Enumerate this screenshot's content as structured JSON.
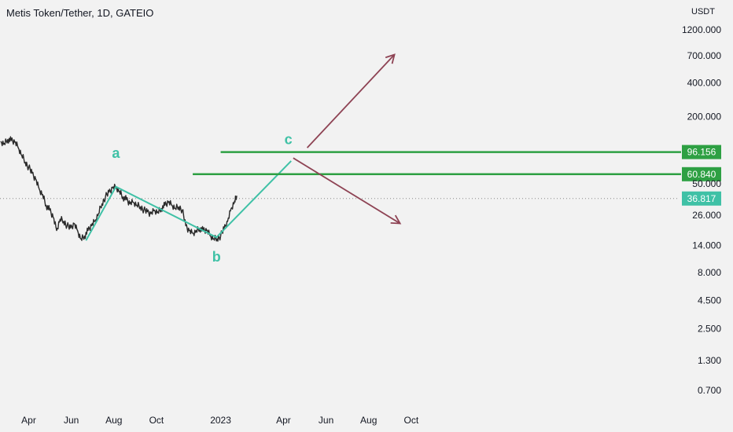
{
  "header": {
    "title": "Metis Token/Tether, 1D, GATEIO",
    "unit": "USDT"
  },
  "colors": {
    "background": "#f2f2f2",
    "price_line": "#2a2a2a",
    "wave": "#3fc1a6",
    "level": "#2ea043",
    "arrow": "#8e4354",
    "last_price_badge": "#3fc1a6"
  },
  "chart_data": {
    "type": "line",
    "title": "Metis Token/Tether, 1D, GATEIO",
    "ylabel": "USDT",
    "y_scale": "log",
    "yticks": [
      "1200.000",
      "700.000",
      "400.000",
      "200.000",
      "50.000",
      "26.000",
      "14.000",
      "8.000",
      "4.500",
      "2.500",
      "1.300",
      "0.700"
    ],
    "ytick_values": [
      1200,
      700,
      400,
      200,
      50,
      26,
      14,
      8,
      4.5,
      2.5,
      1.3,
      0.7
    ],
    "xticks": [
      "Apr",
      "Jun",
      "Aug",
      "Oct",
      "2023",
      "Apr",
      "Jun",
      "Aug",
      "Oct"
    ],
    "series": [
      {
        "name": "",
        "values": [
          [
            "2022-02-20",
            120
          ],
          [
            "2022-02-25",
            115
          ],
          [
            "2022-03-02",
            125
          ],
          [
            "2022-03-07",
            122
          ],
          [
            "2022-03-12",
            118
          ],
          [
            "2022-03-17",
            105
          ],
          [
            "2022-03-22",
            90
          ],
          [
            "2022-03-27",
            78
          ],
          [
            "2022-04-01",
            70
          ],
          [
            "2022-04-06",
            62
          ],
          [
            "2022-04-11",
            55
          ],
          [
            "2022-04-16",
            45
          ],
          [
            "2022-04-21",
            40
          ],
          [
            "2022-04-26",
            32
          ],
          [
            "2022-05-01",
            29
          ],
          [
            "2022-05-06",
            25
          ],
          [
            "2022-05-11",
            19
          ],
          [
            "2022-05-16",
            24
          ],
          [
            "2022-05-21",
            23
          ],
          [
            "2022-05-26",
            21
          ],
          [
            "2022-05-31",
            20
          ],
          [
            "2022-06-05",
            22
          ],
          [
            "2022-06-10",
            19
          ],
          [
            "2022-06-15",
            16
          ],
          [
            "2022-06-20",
            17
          ],
          [
            "2022-06-25",
            19
          ],
          [
            "2022-06-30",
            21
          ],
          [
            "2022-07-05",
            23
          ],
          [
            "2022-07-10",
            27
          ],
          [
            "2022-07-15",
            33
          ],
          [
            "2022-07-20",
            38
          ],
          [
            "2022-07-25",
            42
          ],
          [
            "2022-07-30",
            46
          ],
          [
            "2022-08-04",
            47
          ],
          [
            "2022-08-09",
            43
          ],
          [
            "2022-08-14",
            38
          ],
          [
            "2022-08-19",
            36
          ],
          [
            "2022-08-24",
            33
          ],
          [
            "2022-08-29",
            34
          ],
          [
            "2022-09-03",
            32
          ],
          [
            "2022-09-08",
            31
          ],
          [
            "2022-09-13",
            29
          ],
          [
            "2022-09-18",
            28
          ],
          [
            "2022-09-23",
            27
          ],
          [
            "2022-09-28",
            29
          ],
          [
            "2022-10-03",
            28
          ],
          [
            "2022-10-08",
            30
          ],
          [
            "2022-10-13",
            32
          ],
          [
            "2022-10-18",
            34
          ],
          [
            "2022-10-23",
            32
          ],
          [
            "2022-10-28",
            30
          ],
          [
            "2022-11-02",
            31
          ],
          [
            "2022-11-07",
            29
          ],
          [
            "2022-11-12",
            21
          ],
          [
            "2022-11-17",
            19
          ],
          [
            "2022-11-22",
            18
          ],
          [
            "2022-11-27",
            19
          ],
          [
            "2022-12-02",
            20
          ],
          [
            "2022-12-07",
            19
          ],
          [
            "2022-12-12",
            19
          ],
          [
            "2022-12-17",
            17
          ],
          [
            "2022-12-22",
            16
          ],
          [
            "2022-12-27",
            16
          ],
          [
            "2023-01-01",
            17
          ],
          [
            "2023-01-06",
            20
          ],
          [
            "2023-01-11",
            23
          ],
          [
            "2023-01-16",
            30
          ],
          [
            "2023-01-21",
            35
          ],
          [
            "2023-01-24",
            39
          ]
        ]
      }
    ],
    "annotations": [
      {
        "label": "a",
        "date": "2022-08-04",
        "value": 85
      },
      {
        "label": "b",
        "date": "2022-12-26",
        "value": 10
      },
      {
        "label": "c",
        "date": "2023-04-08",
        "value": 113
      }
    ],
    "wave_path": [
      [
        "2022-06-22",
        15.5
      ],
      [
        "2022-08-04",
        47
      ],
      [
        "2022-12-26",
        16.5
      ],
      [
        "2023-04-12",
        80
      ]
    ],
    "horizontal_levels": [
      {
        "label": "96.156",
        "value": 96.156,
        "start": "2023-01-01"
      },
      {
        "label": "60.840",
        "value": 60.84,
        "start": "2022-11-22"
      }
    ],
    "arrows": [
      {
        "from": [
          "2023-05-05",
          105
        ],
        "to": [
          "2023-09-07",
          720
        ]
      },
      {
        "from": [
          "2023-04-15",
          85
        ],
        "to": [
          "2023-09-15",
          22
        ]
      }
    ],
    "last_price": {
      "label": "36.817",
      "value": 36.817
    }
  }
}
